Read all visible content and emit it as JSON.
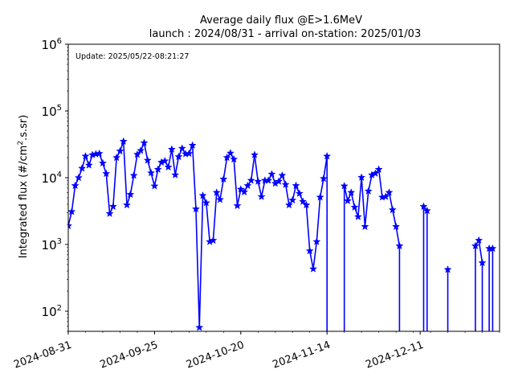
{
  "chart_data": {
    "type": "line",
    "title_line1": "Average daily flux @E>1.6MeV",
    "title_line2": "launch : 2024/08/31 - arrival on-station: 2025/01/03",
    "annotation": "Update: 2025/05/22-08:21:27",
    "ylabel_prefix": "Integrated flux (#/cm",
    "ylabel_sup": "2",
    "ylabel_suffix": ".s.sr)",
    "yscale": "log",
    "ylim": [
      50,
      1000000
    ],
    "xlim": [
      "2024-08-31",
      "2025-01-03"
    ],
    "x_ticks": [
      "2024-08-31",
      "2024-09-25",
      "2024-10-20",
      "2024-11-14",
      "2024-12-11"
    ],
    "y_ticks": [
      {
        "value": 100,
        "base": "10",
        "exp": "2"
      },
      {
        "value": 1000,
        "base": "10",
        "exp": "3"
      },
      {
        "value": 10000,
        "base": "10",
        "exp": "4"
      },
      {
        "value": 100000,
        "base": "10",
        "exp": "5"
      },
      {
        "value": 1000000,
        "base": "10",
        "exp": "6"
      }
    ],
    "grid": false,
    "legend": "none",
    "series": [
      {
        "color": "#0000ff",
        "marker": "star",
        "points": [
          [
            "2024-08-31",
            1900
          ],
          [
            "2024-09-01",
            3100
          ],
          [
            "2024-09-02",
            7600
          ],
          [
            "2024-09-03",
            10000
          ],
          [
            "2024-09-04",
            13800
          ],
          [
            "2024-09-05",
            21000
          ],
          [
            "2024-09-06",
            15400
          ],
          [
            "2024-09-07",
            22000
          ],
          [
            "2024-09-08",
            22600
          ],
          [
            "2024-09-09",
            23000
          ],
          [
            "2024-09-10",
            16500
          ],
          [
            "2024-09-11",
            11500
          ],
          [
            "2024-09-12",
            2900
          ],
          [
            "2024-09-13",
            3700
          ],
          [
            "2024-09-14",
            20000
          ],
          [
            "2024-09-15",
            25000
          ],
          [
            "2024-09-16",
            35000
          ],
          [
            "2024-09-17",
            3900
          ],
          [
            "2024-09-18",
            5600
          ],
          [
            "2024-09-19",
            10800
          ],
          [
            "2024-09-20",
            22300
          ],
          [
            "2024-09-21",
            25500
          ],
          [
            "2024-09-22",
            33300
          ],
          [
            "2024-09-23",
            18200
          ],
          [
            "2024-09-24",
            11800
          ],
          [
            "2024-09-25",
            7500
          ],
          [
            "2024-09-26",
            13300
          ],
          [
            "2024-09-27",
            17000
          ],
          [
            "2024-09-28",
            17800
          ],
          [
            "2024-09-29",
            14400
          ],
          [
            "2024-09-30",
            26600
          ],
          [
            "2024-10-01",
            11000
          ],
          [
            "2024-10-02",
            20600
          ],
          [
            "2024-10-03",
            27500
          ],
          [
            "2024-10-04",
            22700
          ],
          [
            "2024-10-05",
            23000
          ],
          [
            "2024-10-06",
            30500
          ],
          [
            "2024-10-07",
            3400
          ],
          [
            "2024-10-08",
            57
          ],
          [
            "2024-10-09",
            5400
          ],
          [
            "2024-10-10",
            4200
          ],
          [
            "2024-10-11",
            1100
          ],
          [
            "2024-10-12",
            1150
          ],
          [
            "2024-10-13",
            6000
          ],
          [
            "2024-10-14",
            4700
          ],
          [
            "2024-10-15",
            9500
          ],
          [
            "2024-10-16",
            20000
          ],
          [
            "2024-10-17",
            23300
          ],
          [
            "2024-10-18",
            18900
          ],
          [
            "2024-10-19",
            3800
          ],
          [
            "2024-10-20",
            6700
          ],
          [
            "2024-10-21",
            6100
          ],
          [
            "2024-10-22",
            7600
          ],
          [
            "2024-10-23",
            9100
          ],
          [
            "2024-10-24",
            22000
          ],
          [
            "2024-10-25",
            8800
          ],
          [
            "2024-10-26",
            5200
          ],
          [
            "2024-10-27",
            9100
          ],
          [
            "2024-10-28",
            9100
          ],
          [
            "2024-10-29",
            11300
          ],
          [
            "2024-10-30",
            8200
          ],
          [
            "2024-10-31",
            8800
          ],
          [
            "2024-11-01",
            10800
          ],
          [
            "2024-11-02",
            7900
          ],
          [
            "2024-11-03",
            3900
          ],
          [
            "2024-11-04",
            4600
          ],
          [
            "2024-11-05",
            7600
          ],
          [
            "2024-11-06",
            5800
          ],
          [
            "2024-11-07",
            4400
          ],
          [
            "2024-11-08",
            3900
          ],
          [
            "2024-11-09",
            800
          ],
          [
            "2024-11-10",
            430
          ],
          [
            "2024-11-11",
            1100
          ],
          [
            "2024-11-12",
            5100
          ],
          [
            "2024-11-13",
            9700
          ],
          [
            "2024-11-14",
            21000
          ],
          [
            "2024-11-14",
            10
          ],
          [
            "2024-11-19",
            10
          ],
          [
            "2024-11-19",
            7500
          ],
          [
            "2024-11-20",
            4500
          ],
          [
            "2024-11-21",
            6000
          ],
          [
            "2024-11-22",
            3600
          ],
          [
            "2024-11-23",
            2600
          ],
          [
            "2024-11-24",
            10100
          ],
          [
            "2024-11-25",
            1850
          ],
          [
            "2024-11-26",
            6300
          ],
          [
            "2024-11-27",
            11000
          ],
          [
            "2024-11-28",
            11600
          ],
          [
            "2024-11-29",
            13300
          ],
          [
            "2024-11-30",
            5100
          ],
          [
            "2024-12-01",
            5200
          ],
          [
            "2024-12-02",
            6000
          ],
          [
            "2024-12-03",
            3300
          ],
          [
            "2024-12-04",
            1850
          ],
          [
            "2024-12-05",
            950
          ],
          [
            "2024-12-05",
            10
          ]
        ]
      },
      {
        "color": "#0000ff",
        "marker": "star",
        "points": [
          [
            "2024-12-12",
            10
          ],
          [
            "2024-12-12",
            3700
          ],
          [
            "2024-12-13",
            3200
          ],
          [
            "2024-12-13",
            10
          ]
        ]
      },
      {
        "color": "#0000ff",
        "marker": "star",
        "points": [
          [
            "2024-12-19",
            10
          ],
          [
            "2024-12-19",
            420
          ],
          [
            "2024-12-19",
            10
          ]
        ]
      },
      {
        "color": "#0000ff",
        "marker": "star",
        "points": [
          [
            "2024-12-27",
            10
          ],
          [
            "2024-12-27",
            950
          ],
          [
            "2024-12-28",
            1150
          ],
          [
            "2024-12-29",
            530
          ],
          [
            "2024-12-29",
            10
          ]
        ]
      },
      {
        "color": "#0000ff",
        "marker": "star",
        "points": [
          [
            "2024-12-31",
            10
          ],
          [
            "2024-12-31",
            870
          ],
          [
            "2025-01-01",
            870
          ],
          [
            "2025-01-01",
            10
          ]
        ]
      }
    ]
  }
}
